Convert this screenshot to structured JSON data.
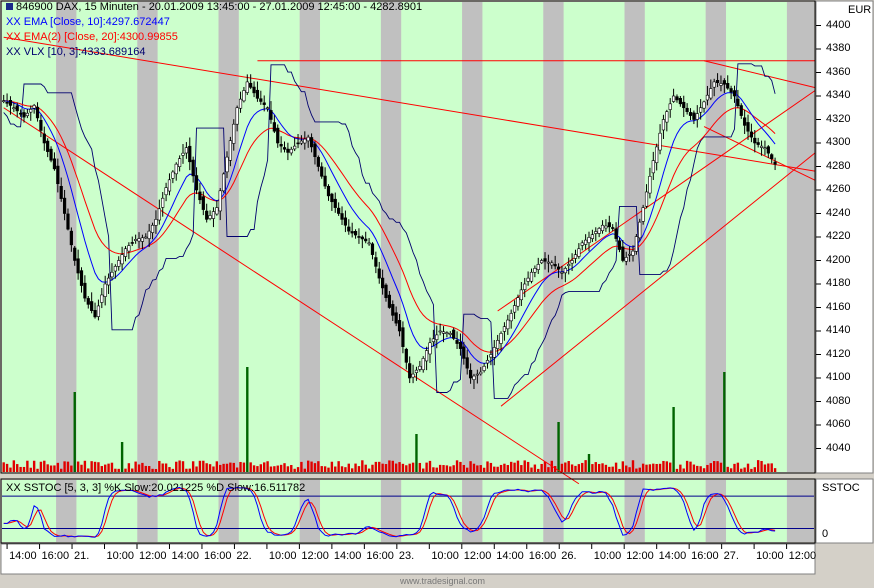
{
  "header": {
    "main_title": "846900  DAX, 15 Minuten - 20.01.2009 13:45:00 - 27.01.2009 12:45:00 - 4282.8901",
    "ema10": "XX EMA [Close, 10]:4297.672447",
    "ema20": "XX EMA(2) [Close, 20]:4300.99855",
    "vlx": "XX VLX [10, 3]:4333.689164",
    "stoch": "XX SSTOC [5, 3, 3] %K Slow:20.021225 %D Slow:16.511782"
  },
  "currency_label": "EUR",
  "stoch_panel_label": "SSTOC",
  "stoch_zero_label": "0",
  "watermark": "www.tradesignal.com",
  "colors": {
    "up": "#ffffff",
    "down": "#000000",
    "ema10": "#0000ff",
    "ema20": "#ff0000",
    "vlx": "#00006e",
    "trend": "#ff0000",
    "vol": "#e00000",
    "vol_spike": "#006400",
    "stoch_k": "#0000ff",
    "stoch_d": "#ff0000",
    "green_band": "#ccffcc",
    "gray_band": "#c0c0c0"
  },
  "chart_data": {
    "type": "candlestick",
    "ylim": [
      4020,
      4420
    ],
    "y_ticks": [
      4040,
      4060,
      4080,
      4100,
      4120,
      4140,
      4160,
      4180,
      4200,
      4220,
      4240,
      4260,
      4280,
      4300,
      4320,
      4340,
      4360,
      4380,
      4400
    ],
    "y_tick_labels": [
      "4040",
      "4060",
      "4080",
      "4100",
      "4120",
      "4140",
      "4160",
      "4180",
      "4200",
      "4220",
      "4240",
      "4260",
      "4280",
      "4300",
      "4320",
      "4340",
      "4360",
      "4380",
      "4400"
    ],
    "x_labels": [
      "14:00",
      "16:00",
      "21.",
      "10:00",
      "12:00",
      "14:00",
      "16:00",
      "22.",
      "10:00",
      "12:00",
      "14:00",
      "16:00",
      "23.",
      "10:00",
      "12:00",
      "14:00",
      "16:00",
      "26.",
      "10:00",
      "12:00",
      "14:00",
      "16:00",
      "27.",
      "10:00",
      "12:00"
    ],
    "close_path": [
      [
        0,
        4336
      ],
      [
        3,
        4330
      ],
      [
        6,
        4322
      ],
      [
        9,
        4332
      ],
      [
        12,
        4300
      ],
      [
        15,
        4278
      ],
      [
        18,
        4240
      ],
      [
        21,
        4200
      ],
      [
        24,
        4168
      ],
      [
        27,
        4152
      ],
      [
        30,
        4180
      ],
      [
        33,
        4195
      ],
      [
        36,
        4210
      ],
      [
        39,
        4218
      ],
      [
        42,
        4220
      ],
      [
        45,
        4235
      ],
      [
        48,
        4262
      ],
      [
        51,
        4282
      ],
      [
        54,
        4296
      ],
      [
        57,
        4260
      ],
      [
        60,
        4235
      ],
      [
        63,
        4245
      ],
      [
        66,
        4288
      ],
      [
        69,
        4330
      ],
      [
        72,
        4352
      ],
      [
        75,
        4338
      ],
      [
        78,
        4330
      ],
      [
        81,
        4300
      ],
      [
        84,
        4292
      ],
      [
        87,
        4300
      ],
      [
        90,
        4305
      ],
      [
        93,
        4280
      ],
      [
        96,
        4255
      ],
      [
        99,
        4240
      ],
      [
        102,
        4225
      ],
      [
        105,
        4220
      ],
      [
        108,
        4215
      ],
      [
        111,
        4185
      ],
      [
        114,
        4160
      ],
      [
        117,
        4140
      ],
      [
        120,
        4100
      ],
      [
        123,
        4110
      ],
      [
        126,
        4130
      ],
      [
        129,
        4140
      ],
      [
        132,
        4138
      ],
      [
        135,
        4125
      ],
      [
        138,
        4100
      ],
      [
        141,
        4105
      ],
      [
        144,
        4120
      ],
      [
        147,
        4138
      ],
      [
        150,
        4155
      ],
      [
        153,
        4175
      ],
      [
        156,
        4190
      ],
      [
        159,
        4200
      ],
      [
        162,
        4198
      ],
      [
        165,
        4190
      ],
      [
        168,
        4200
      ],
      [
        171,
        4215
      ],
      [
        174,
        4222
      ],
      [
        177,
        4230
      ],
      [
        180,
        4228
      ],
      [
        183,
        4200
      ],
      [
        186,
        4208
      ],
      [
        189,
        4245
      ],
      [
        192,
        4285
      ],
      [
        195,
        4320
      ],
      [
        198,
        4340
      ],
      [
        201,
        4330
      ],
      [
        204,
        4320
      ],
      [
        207,
        4335
      ],
      [
        210,
        4352
      ],
      [
        213,
        4350
      ],
      [
        216,
        4340
      ],
      [
        219,
        4315
      ],
      [
        222,
        4300
      ],
      [
        225,
        4296
      ],
      [
        228,
        4282
      ]
    ],
    "stoch_ylim": [
      -5,
      110
    ],
    "stoch_lines": [
      20,
      80
    ],
    "vol_spikes": [
      [
        21,
        80
      ],
      [
        35,
        30
      ],
      [
        72,
        105
      ],
      [
        122,
        38
      ],
      [
        164,
        50
      ],
      [
        173,
        18
      ],
      [
        198,
        65
      ],
      [
        213,
        100
      ]
    ],
    "trendlines": [
      [
        [
          0,
          4390
        ],
        [
          240,
          4276
        ]
      ],
      [
        [
          75,
          4370
        ],
        [
          240,
          4370
        ]
      ],
      [
        [
          0,
          4330
        ],
        [
          170,
          4010
        ]
      ],
      [
        [
          146,
          4157
        ],
        [
          240,
          4345
        ]
      ],
      [
        [
          147,
          4076
        ],
        [
          240,
          4292
        ]
      ],
      [
        [
          207,
          4370
        ],
        [
          240,
          4347
        ]
      ],
      [
        [
          207,
          4314
        ],
        [
          240,
          4268
        ]
      ]
    ],
    "sessions": [
      [
        0,
        16,
        "green"
      ],
      [
        16,
        22,
        "gray"
      ],
      [
        22,
        40,
        "green"
      ],
      [
        40,
        46,
        "gray"
      ],
      [
        46,
        64,
        "green"
      ],
      [
        64,
        70,
        "gray"
      ],
      [
        70,
        88,
        "green"
      ],
      [
        88,
        94,
        "gray"
      ],
      [
        94,
        112,
        "green"
      ],
      [
        112,
        118,
        "gray"
      ],
      [
        118,
        136,
        "green"
      ],
      [
        136,
        142,
        "gray"
      ],
      [
        142,
        160,
        "green"
      ],
      [
        160,
        166,
        "gray"
      ],
      [
        166,
        184,
        "green"
      ],
      [
        184,
        190,
        "gray"
      ],
      [
        190,
        208,
        "green"
      ],
      [
        208,
        214,
        "gray"
      ],
      [
        214,
        232,
        "green"
      ]
    ]
  }
}
